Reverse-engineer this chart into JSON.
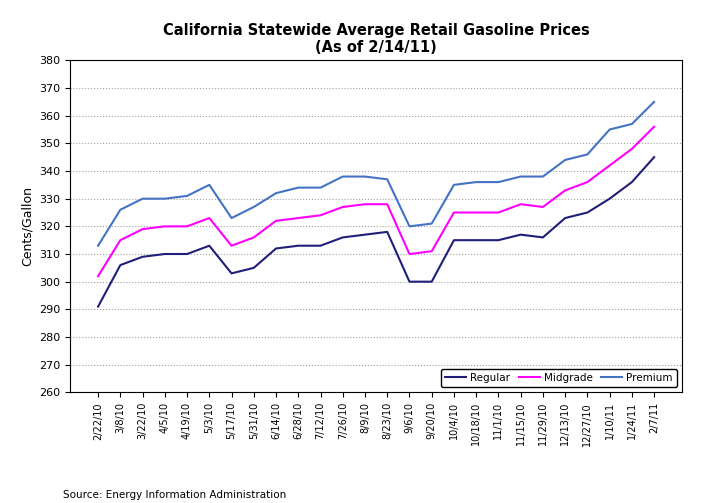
{
  "title_line1": "California Statewide Average Retail Gasoline Prices",
  "title_line2": "(As of 2/14/11)",
  "ylabel": "Cents/Gallon",
  "source": "Source: Energy Information Administration",
  "ylim": [
    260,
    380
  ],
  "yticks": [
    260,
    270,
    280,
    290,
    300,
    310,
    320,
    330,
    340,
    350,
    360,
    370,
    380
  ],
  "x_labels": [
    "2/22/10",
    "3/8/10",
    "3/22/10",
    "4/5/10",
    "4/19/10",
    "5/3/10",
    "5/17/10",
    "5/31/10",
    "6/14/10",
    "6/28/10",
    "7/12/10",
    "7/26/10",
    "8/9/10",
    "8/23/10",
    "9/6/10",
    "9/20/10",
    "10/4/10",
    "10/18/10",
    "11/1/10",
    "11/15/10",
    "11/29/10",
    "12/13/10",
    "12/27/10",
    "1/10/11",
    "1/24/11",
    "2/7/11"
  ],
  "regular": [
    291,
    306,
    309,
    310,
    310,
    313,
    303,
    305,
    312,
    313,
    313,
    316,
    317,
    318,
    300,
    300,
    315,
    315,
    315,
    317,
    316,
    323,
    325,
    330,
    336,
    345
  ],
  "midgrade": [
    302,
    315,
    319,
    320,
    320,
    323,
    313,
    316,
    322,
    323,
    324,
    327,
    328,
    328,
    310,
    311,
    325,
    325,
    325,
    328,
    327,
    333,
    336,
    342,
    348,
    356
  ],
  "premium": [
    313,
    326,
    330,
    330,
    331,
    335,
    323,
    327,
    332,
    334,
    334,
    338,
    338,
    337,
    320,
    321,
    335,
    336,
    336,
    338,
    338,
    344,
    346,
    355,
    357,
    365
  ],
  "regular_color": "#1F1F7A",
  "midgrade_color": "#FF00FF",
  "premium_color": "#4472C4",
  "legend_labels": [
    "Regular",
    "Midgrade",
    "Premium"
  ],
  "background_color": "#FFFFFF",
  "grid_color": "#A0A0A0",
  "figsize": [
    7.03,
    5.03
  ],
  "dpi": 100
}
